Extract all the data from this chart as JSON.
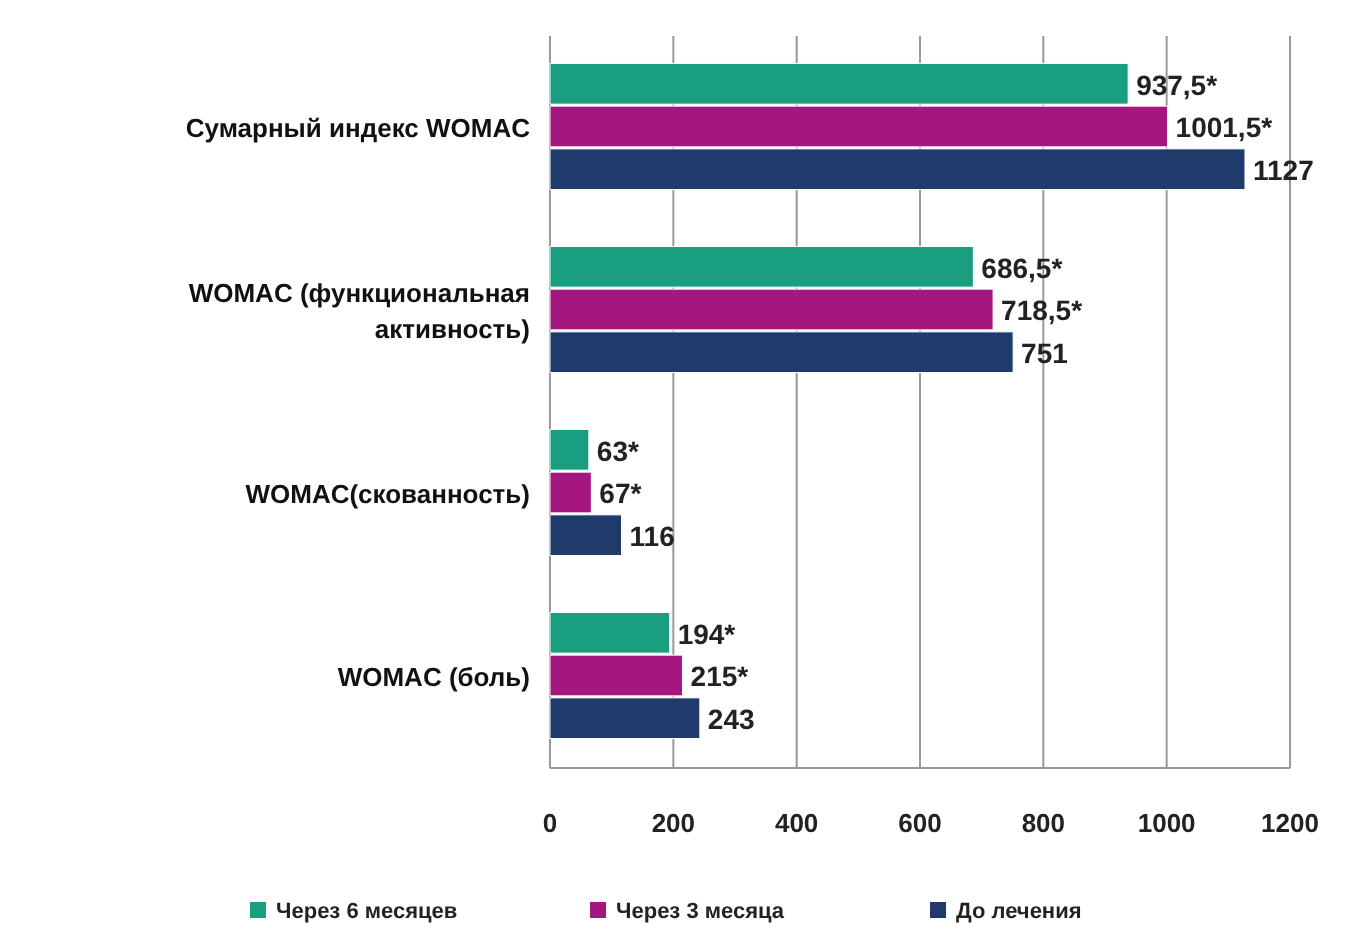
{
  "chart_data": {
    "type": "bar",
    "orientation": "horizontal",
    "categories": [
      "Сумарный индекс WOMAC",
      "WOMAC (функциональная активность)",
      "WOMAC(скованность)",
      "WOMAC (боль)"
    ],
    "series": [
      {
        "name": "Через 6 месяцев",
        "color": "#1a9e80",
        "values": [
          937.5,
          686.5,
          63,
          194
        ],
        "value_labels": [
          "937,5*",
          "686,5*",
          "63*",
          "194*"
        ]
      },
      {
        "name": "Через 3 месяца",
        "color": "#a3177f",
        "values": [
          1001.5,
          718.5,
          67,
          215
        ],
        "value_labels": [
          "1001,5*",
          "718,5*",
          "67*",
          "215*"
        ]
      },
      {
        "name": "До лечения",
        "color": "#1f3a6b",
        "values": [
          1127,
          751,
          116,
          243
        ],
        "value_labels": [
          "1127",
          "751",
          "116",
          "243"
        ]
      }
    ],
    "xlim": [
      0,
      1200
    ],
    "xticks": [
      0,
      200,
      400,
      600,
      800,
      1000,
      1200
    ],
    "grid": "x",
    "legend": "bottom"
  }
}
